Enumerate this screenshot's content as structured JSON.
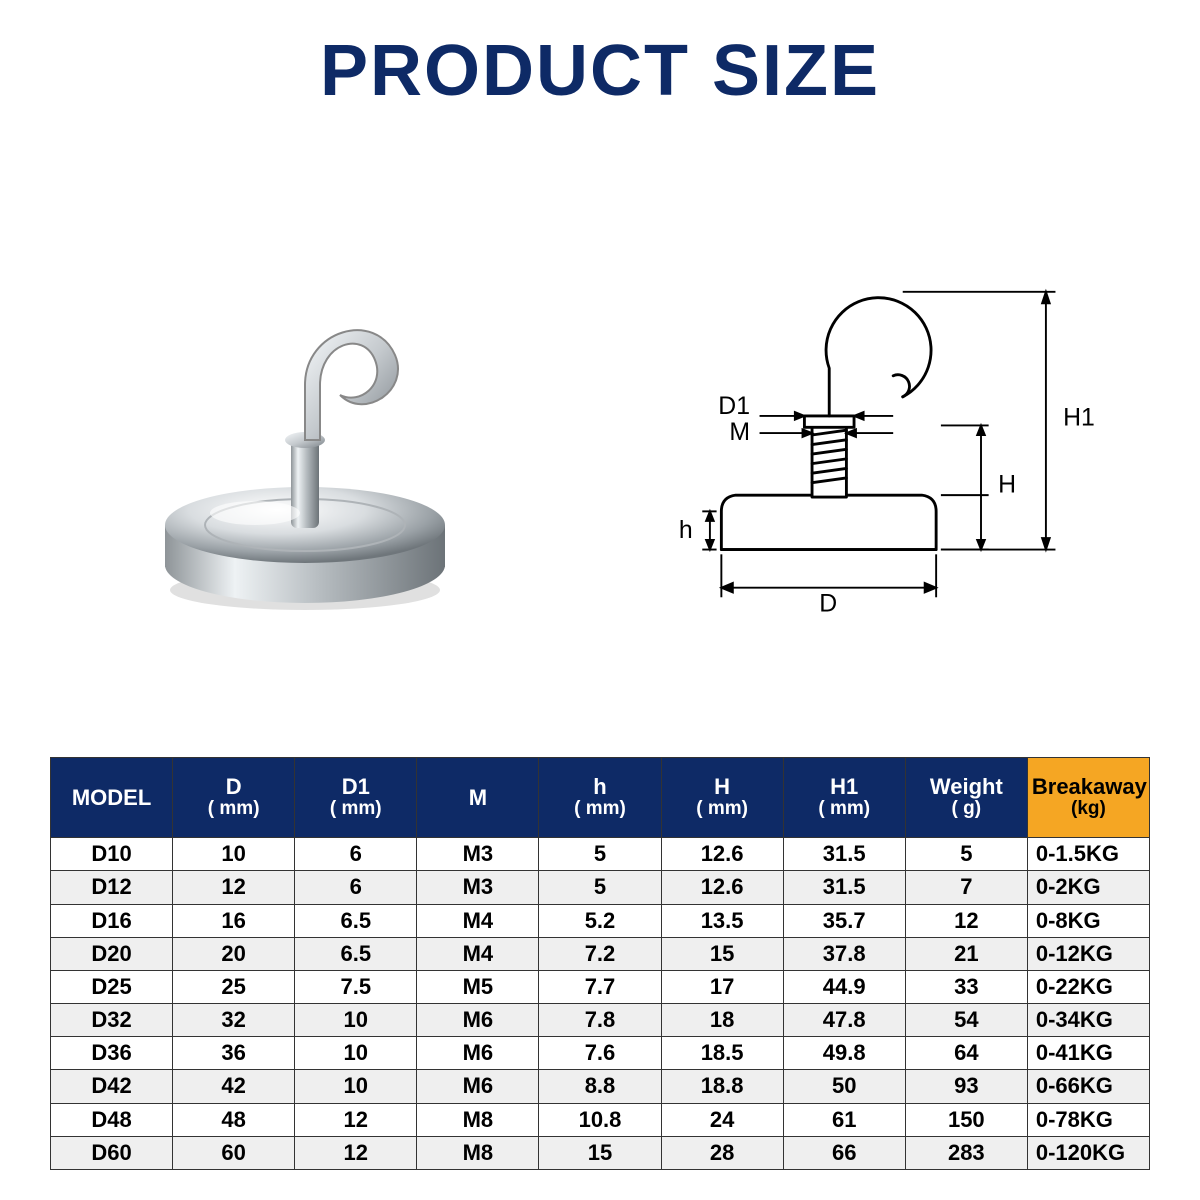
{
  "title": "PRODUCT SIZE",
  "title_color": "#0e2a66",
  "diagram_labels": {
    "D": "D",
    "D1": "D1",
    "M": "M",
    "h": "h",
    "H": "H",
    "H1": "H1"
  },
  "table": {
    "header_bg_main": "#0e2a66",
    "header_bg_accent": "#f5a623",
    "header_text_main": "#ffffff",
    "header_text_accent": "#000000",
    "row_alt_bg": "#efefef",
    "border_color": "#333333",
    "columns": [
      {
        "label": "MODEL",
        "sub": ""
      },
      {
        "label": "D",
        "sub": "( mm)"
      },
      {
        "label": "D1",
        "sub": "( mm)"
      },
      {
        "label": "M",
        "sub": ""
      },
      {
        "label": "h",
        "sub": "( mm)"
      },
      {
        "label": "H",
        "sub": "( mm)"
      },
      {
        "label": "H1",
        "sub": "( mm)"
      },
      {
        "label": "Weight",
        "sub": "( g)"
      },
      {
        "label": "Breakaway",
        "sub": "(kg)"
      }
    ],
    "rows": [
      [
        "D10",
        "10",
        "6",
        "M3",
        "5",
        "12.6",
        "31.5",
        "5",
        "0-1.5KG"
      ],
      [
        "D12",
        "12",
        "6",
        "M3",
        "5",
        "12.6",
        "31.5",
        "7",
        "0-2KG"
      ],
      [
        "D16",
        "16",
        "6.5",
        "M4",
        "5.2",
        "13.5",
        "35.7",
        "12",
        "0-8KG"
      ],
      [
        "D20",
        "20",
        "6.5",
        "M4",
        "7.2",
        "15",
        "37.8",
        "21",
        "0-12KG"
      ],
      [
        "D25",
        "25",
        "7.5",
        "M5",
        "7.7",
        "17",
        "44.9",
        "33",
        "0-22KG"
      ],
      [
        "D32",
        "32",
        "10",
        "M6",
        "7.8",
        "18",
        "47.8",
        "54",
        "0-34KG"
      ],
      [
        "D36",
        "36",
        "10",
        "M6",
        "7.6",
        "18.5",
        "49.8",
        "64",
        "0-41KG"
      ],
      [
        "D42",
        "42",
        "10",
        "M6",
        "8.8",
        "18.8",
        "50",
        "93",
        "0-66KG"
      ],
      [
        "D48",
        "48",
        "12",
        "M8",
        "10.8",
        "24",
        "61",
        "150",
        "0-78KG"
      ],
      [
        "D60",
        "60",
        "12",
        "M8",
        "15",
        "28",
        "66",
        "283",
        "0-120KG"
      ]
    ]
  }
}
